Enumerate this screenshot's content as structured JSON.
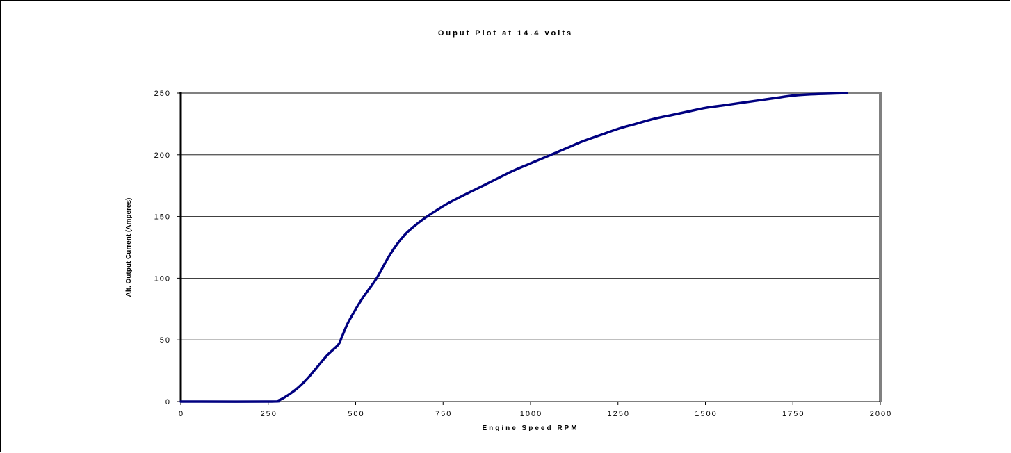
{
  "chart_data": {
    "type": "line",
    "title": "Ouput Plot at 14.4 volts",
    "xlabel": "Engine Speed RPM",
    "ylabel": "Alt. Output Current (Amperes)",
    "xlim": [
      0,
      2000
    ],
    "ylim": [
      0,
      250
    ],
    "x_ticks": [
      "0",
      "250",
      "500",
      "750",
      "1000",
      "1250",
      "1500",
      "1750",
      "2000"
    ],
    "y_ticks": [
      "0",
      "50",
      "100",
      "150",
      "200",
      "250"
    ],
    "grid": "horizontal",
    "legend": "none",
    "series": [
      {
        "color": "#000080",
        "x": [
          0,
          60,
          260,
          280,
          300,
          330,
          360,
          390,
          420,
          450,
          460,
          475,
          490,
          520,
          560,
          600,
          640,
          680,
          720,
          760,
          800,
          850,
          900,
          950,
          1000,
          1050,
          1100,
          1150,
          1200,
          1250,
          1300,
          1350,
          1400,
          1450,
          1500,
          1550,
          1600,
          1650,
          1700,
          1750,
          1800,
          1850,
          1905
        ],
        "y": [
          0,
          0,
          0,
          1,
          4,
          10,
          18,
          28,
          38,
          46,
          52,
          62,
          70,
          84,
          100,
          120,
          135,
          145,
          153,
          160,
          166,
          173,
          180,
          187,
          193,
          199,
          205,
          211,
          216,
          221,
          225,
          229,
          232,
          235,
          238,
          240,
          242,
          244,
          246,
          248,
          249,
          249.5,
          250
        ]
      }
    ]
  }
}
